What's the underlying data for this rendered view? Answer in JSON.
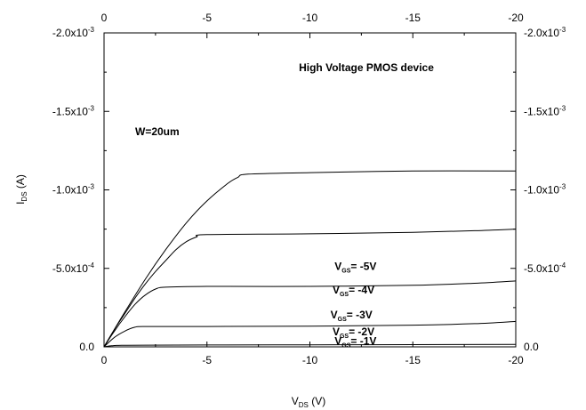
{
  "chart_data": {
    "type": "line",
    "title": "High Voltage PMOS device",
    "xlabel": "V",
    "xlabel_sub": "DS",
    "xlabel_unit": " (V)",
    "ylabel": "I",
    "ylabel_sub": "DS",
    "ylabel_unit": " (A)",
    "xlim": [
      0,
      -20
    ],
    "ylim": [
      0.0,
      -0.002
    ],
    "x_ticks": [
      0,
      -5,
      -10,
      -15,
      -20
    ],
    "x_tick_labels": [
      "0",
      "-5",
      "-10",
      "-15",
      "-20"
    ],
    "y_ticks": [
      0.0,
      -0.0005,
      -0.001,
      -0.0015,
      -0.002
    ],
    "y_tick_labels": [
      {
        "mantissa": "0.0",
        "exp": ""
      },
      {
        "mantissa": "-5.0x10",
        "exp": "-4"
      },
      {
        "mantissa": "-1.0x10",
        "exp": "-3"
      },
      {
        "mantissa": "-1.5x10",
        "exp": "-3"
      },
      {
        "mantissa": "-2.0x10",
        "exp": "-3"
      }
    ],
    "width_note": "W=20um",
    "series": [
      {
        "name": "-1V",
        "label_prefix": "V",
        "label_sub": "GS",
        "label_suffix": "= -1V",
        "label_x": -11.2,
        "label_y": -1.5e-05,
        "x": [
          0,
          -0.3,
          -0.6,
          -1,
          -2,
          -5,
          -10,
          -15,
          -20
        ],
        "y": [
          0,
          -6e-06,
          -9e-06,
          -1e-05,
          -1.1e-05,
          -1.2e-05,
          -1.3e-05,
          -1.4e-05,
          -1.6e-05
        ]
      },
      {
        "name": "-2V",
        "label_prefix": "V",
        "label_sub": "GS",
        "label_suffix": "= -2V",
        "label_x": -11.1,
        "label_y": -7.5e-05,
        "x": [
          0,
          -0.5,
          -1.0,
          -1.5,
          -2.0,
          -5,
          -10,
          -15,
          -18,
          -20
        ],
        "y": [
          0,
          -6e-05,
          -0.0001,
          -0.000125,
          -0.00013,
          -0.00013,
          -0.000132,
          -0.000138,
          -0.000148,
          -0.000162
        ]
      },
      {
        "name": "-3V",
        "label_prefix": "V",
        "label_sub": "GS",
        "label_suffix": "= -3V",
        "label_x": -11.0,
        "label_y": -0.000182,
        "x": [
          0,
          -0.5,
          -1.0,
          -1.5,
          -2.0,
          -2.5,
          -3.0,
          -5,
          -10,
          -15,
          -18,
          -20
        ],
        "y": [
          0,
          -0.0001,
          -0.00019,
          -0.00027,
          -0.00033,
          -0.000368,
          -0.00038,
          -0.000385,
          -0.000385,
          -0.000392,
          -0.000405,
          -0.00042
        ]
      },
      {
        "name": "-4V",
        "label_prefix": "V",
        "label_sub": "GS",
        "label_suffix": "= -4V",
        "label_x": -11.1,
        "label_y": -0.00034,
        "x": [
          0,
          -0.5,
          -1.0,
          -1.5,
          -2.0,
          -2.5,
          -3.0,
          -3.5,
          -4.0,
          -4.5,
          -5.0,
          -10,
          -15,
          -18,
          -20
        ],
        "y": [
          0,
          -0.00011,
          -0.00021,
          -0.00031,
          -0.0004,
          -0.00048,
          -0.00055,
          -0.00062,
          -0.00067,
          -0.0007,
          -0.000715,
          -0.00072,
          -0.00073,
          -0.00074,
          -0.00075
        ]
      },
      {
        "name": "-5V",
        "label_prefix": "V",
        "label_sub": "GS",
        "label_suffix": "= -5V",
        "label_x": -11.2,
        "label_y": -0.00049,
        "x": [
          0,
          -1,
          -2,
          -3,
          -4,
          -5,
          -6,
          -6.5,
          -7,
          -10,
          -15,
          -20
        ],
        "y": [
          0,
          -0.00022,
          -0.00043,
          -0.00062,
          -0.00079,
          -0.00093,
          -0.00104,
          -0.00108,
          -0.0011,
          -0.00111,
          -0.00112,
          -0.00112
        ]
      }
    ]
  }
}
